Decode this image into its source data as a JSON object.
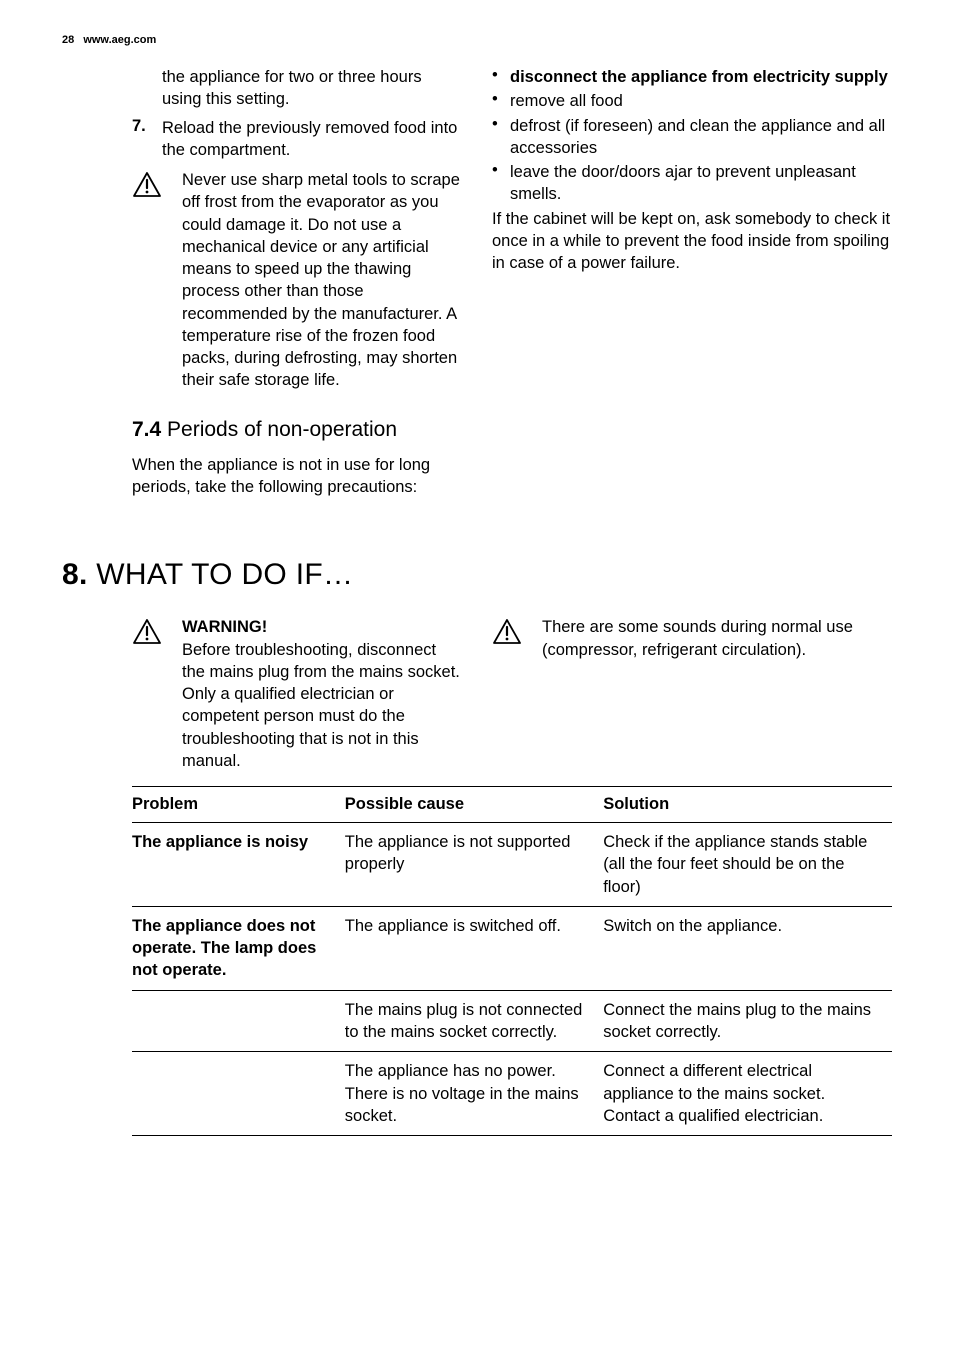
{
  "header": {
    "page_number": "28",
    "url": "www.aeg.com"
  },
  "colors": {
    "text": "#000000",
    "background": "#ffffff",
    "rule": "#000000"
  },
  "left": {
    "cont_para": "the appliance for two or three hours using this setting.",
    "step7_num": "7.",
    "step7_text": "Reload the previously removed food into the compartment.",
    "warning1": "Never use sharp metal tools to scrape off frost from the evaporator as you could damage it. Do not use a mechanical device or any artificial means to speed up the thawing process other than those recommended by the manufacturer. A temperature rise of the frozen food packs, during defrosting, may shorten their safe storage life.",
    "sub74_num": "7.4",
    "sub74_title": " Periods of non-operation",
    "sub74_para": "When the appliance is not in use for long periods, take the following precautions:"
  },
  "right": {
    "bullets": [
      {
        "text": "disconnect the appliance from electricity supply",
        "bold": true
      },
      {
        "text": "remove all food",
        "bold": false
      },
      {
        "text": "defrost (if foreseen) and clean the appliance and all accessories",
        "bold": false
      },
      {
        "text": "leave the door/doors ajar to prevent unpleasant smells.",
        "bold": false
      }
    ],
    "after_para": "If the cabinet will be kept on, ask somebody to check it once in a while to prevent the food inside from spoiling in case of a power failure."
  },
  "section8": {
    "num": "8.",
    "title": " WHAT TO DO IF…",
    "warn_left_title": "WARNING!",
    "warn_left_body": "Before troubleshooting, disconnect the mains plug from the mains socket.\nOnly a qualified electrician or competent person must do the troubleshooting that is not in this manual.",
    "warn_right": "There are some sounds during normal use (compressor, refrigerant circulation)."
  },
  "table": {
    "headers": [
      "Problem",
      "Possible cause",
      "Solution"
    ],
    "rows": [
      {
        "problem": "The appliance is noisy",
        "cause": "The appliance is not supported properly",
        "solution": "Check if the appliance stands stable (all the four feet should be on the floor)"
      },
      {
        "problem": "The appliance does not operate. The lamp does not operate.",
        "cause": "The appliance is switched off.",
        "solution": "Switch on the appliance."
      },
      {
        "problem": "",
        "cause": "The mains plug is not connected to the mains socket correctly.",
        "solution": "Connect the mains plug to the mains socket correctly."
      },
      {
        "problem": "",
        "cause": "The appliance has no power. There is no voltage in the mains socket.",
        "solution": "Connect a different electrical appliance to the mains socket.\nContact a qualified electrician."
      }
    ]
  }
}
